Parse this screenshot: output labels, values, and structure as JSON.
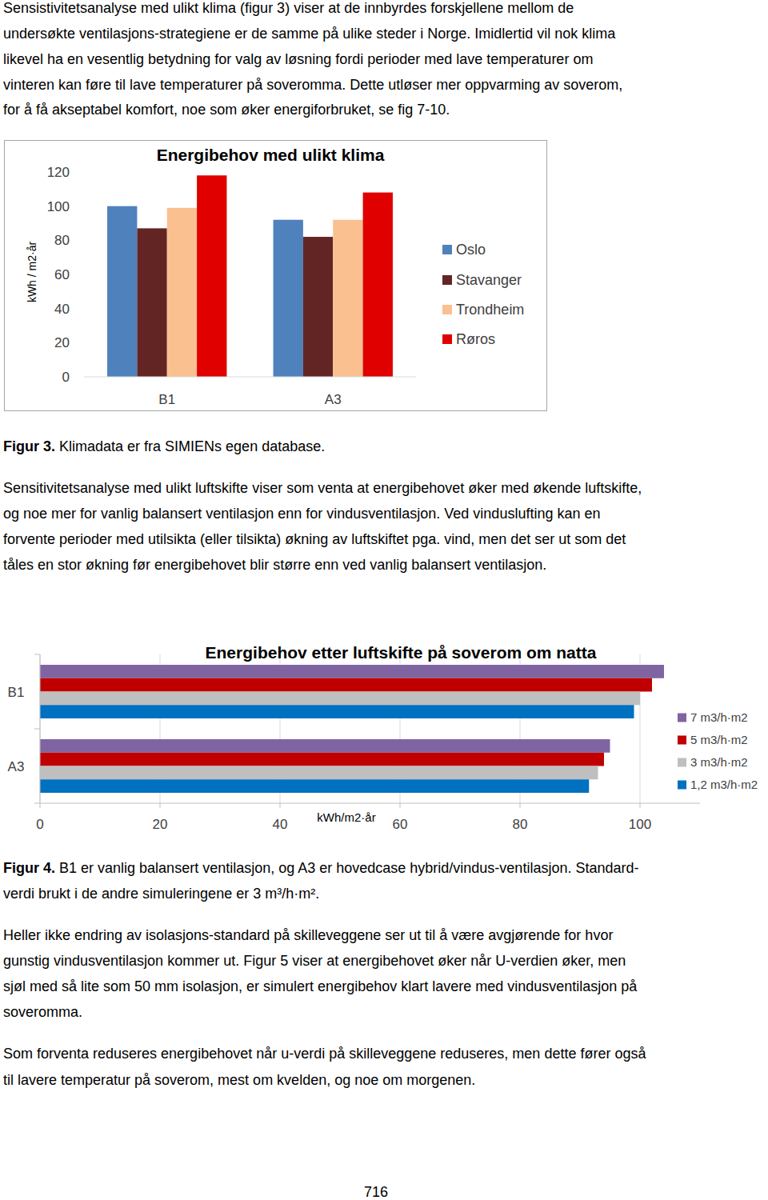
{
  "text": {
    "paragraph_1": [
      "Sensistivitetsanalyse med ulikt klima (figur 3) viser at de innbyrdes forskjellene mellom de",
      "undersøkte ventilasjons-strategiene er de samme på ulike steder i Norge. Imidlertid vil nok klima",
      "likevel ha en vesentlig betydning for valg av løsning fordi perioder med lave temperaturer om",
      "vinteren kan føre til lave temperaturer på soveromma. Dette utløser mer oppvarming av soverom,",
      "for å få akseptabel komfort, noe som øker energiforbruket, se fig 7-10."
    ],
    "caption_3": {
      "label": "Figur 3.",
      "lines": [
        "Klimadata er fra SIMIENs egen database."
      ]
    },
    "paragraph_2": [
      "Sensitivitetsanalyse med ulikt luftskifte viser som venta at energibehovet øker med økende luftskifte,",
      "og noe mer for vanlig balansert ventilasjon enn for vindusventilasjon. Ved vinduslufting kan en",
      "forvente perioder med utilsikta (eller tilsikta) økning av luftskiftet pga. vind, men det ser ut som det",
      "tåles en stor økning før energibehovet blir større enn ved vanlig balansert ventilasjon."
    ],
    "caption_4": {
      "label": "Figur 4.",
      "lines": [
        "B1 er vanlig balansert ventilasjon, og A3 er hovedcase hybrid/vindus-ventilasjon. Standard-",
        "verdi brukt i de andre simuleringene er 3 m³/h·m²."
      ]
    },
    "paragraph_3": [
      "Heller ikke endring av isolasjons-standard på skilleveggene ser ut til å være avgjørende for hvor",
      "gunstig vindusventilasjon kommer ut. Figur 5 viser at energibehovet øker når U-verdien øker, men",
      "sjøl med så lite som 50 mm isolasjon, er simulert energibehov klart lavere med vindusventilasjon på",
      "soveromma."
    ],
    "paragraph_4": [
      "Som forventa reduseres energibehovet når u-verdi på skilleveggene reduseres, men dette fører også",
      "til lavere temperatur på soverom, mest om kvelden, og noe om morgenen."
    ],
    "page_number": "716"
  },
  "chart_data": [
    {
      "type": "bar",
      "title": "Energibehov med ulikt klima",
      "y_label": "kWh / m2·år",
      "categories": [
        "B1",
        "A3"
      ],
      "series": [
        {
          "name": "Oslo",
          "color": "#4f81bd",
          "values": [
            100,
            92
          ]
        },
        {
          "name": "Stavanger",
          "color": "#632523",
          "values": [
            87,
            82
          ]
        },
        {
          "name": "Trondheim",
          "color": "#fac090",
          "values": [
            99,
            92
          ]
        },
        {
          "name": "Røros",
          "color": "#e00000",
          "values": [
            118,
            108
          ]
        }
      ],
      "ylim": [
        0,
        120
      ],
      "yticks": [
        0,
        20,
        40,
        60,
        80,
        100,
        120
      ],
      "grid": false,
      "legend": "right"
    },
    {
      "type": "bar",
      "orientation": "horizontal",
      "title": "Energibehov etter luftskifte på soverom om natta",
      "x_label": "kWh/m2·år",
      "categories": [
        "B1",
        "A3"
      ],
      "series": [
        {
          "name": "7 m3/h·m2",
          "color": "#8064a2",
          "values": [
            104,
            95
          ]
        },
        {
          "name": "5 m3/h·m2",
          "color": "#c00000",
          "values": [
            102,
            94
          ]
        },
        {
          "name": "3 m3/h·m2",
          "color": "#bfbfbf",
          "values": [
            100,
            93
          ]
        },
        {
          "name": "1,2 m3/h·m2",
          "color": "#0070c0",
          "values": [
            99,
            91.5
          ]
        }
      ],
      "xlim": [
        0,
        110
      ],
      "xticks": [
        0,
        20,
        40,
        60,
        80,
        100
      ],
      "grid": true,
      "legend": "right"
    }
  ]
}
